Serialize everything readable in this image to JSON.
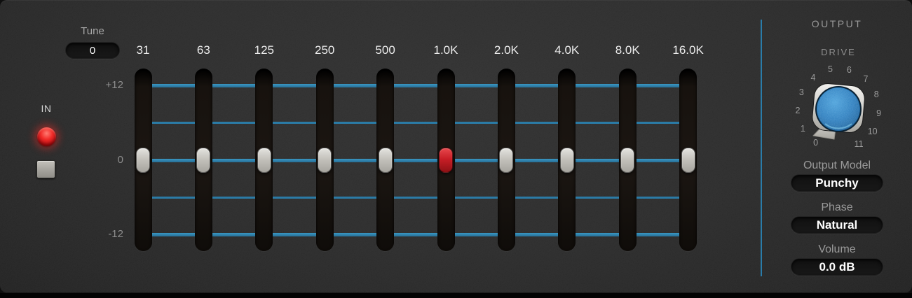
{
  "tune": {
    "label": "Tune",
    "value": "0"
  },
  "input": {
    "label": "IN",
    "led_on": true
  },
  "eq": {
    "scale_labels": [
      "+12",
      "0",
      "-12"
    ],
    "gain_range_db": [
      -12,
      12
    ],
    "bands": [
      {
        "freq": "31",
        "gain_db": 0,
        "handle_color": "gray"
      },
      {
        "freq": "63",
        "gain_db": 0,
        "handle_color": "gray"
      },
      {
        "freq": "125",
        "gain_db": 0,
        "handle_color": "gray"
      },
      {
        "freq": "250",
        "gain_db": 0,
        "handle_color": "gray"
      },
      {
        "freq": "500",
        "gain_db": 0,
        "handle_color": "gray"
      },
      {
        "freq": "1.0K",
        "gain_db": 0,
        "handle_color": "red"
      },
      {
        "freq": "2.0K",
        "gain_db": 0,
        "handle_color": "gray"
      },
      {
        "freq": "4.0K",
        "gain_db": 0,
        "handle_color": "gray"
      },
      {
        "freq": "8.0K",
        "gain_db": 0,
        "handle_color": "gray"
      },
      {
        "freq": "16.0K",
        "gain_db": 0,
        "handle_color": "gray"
      }
    ]
  },
  "output": {
    "title": "OUTPUT",
    "drive": {
      "label": "DRIVE",
      "value": "0",
      "scale": [
        "0",
        "1",
        "2",
        "3",
        "4",
        "5",
        "6",
        "7",
        "8",
        "9",
        "10",
        "11"
      ]
    },
    "fields": [
      {
        "label": "Output Model",
        "value": "Punchy"
      },
      {
        "label": "Phase",
        "value": "Natural"
      },
      {
        "label": "Volume",
        "value": "0.0 dB"
      }
    ]
  },
  "colors": {
    "accent_blue": "#2e86b3",
    "divider_blue": "#2a7ca9",
    "handle_red": "#c6202a",
    "led_red": "#e01820",
    "knob_blue": "#2a7cbd"
  }
}
